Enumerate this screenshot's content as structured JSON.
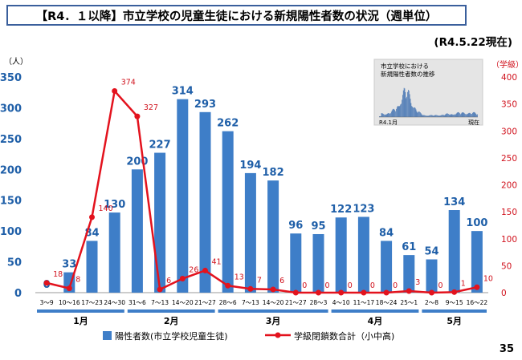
{
  "title": "【R4．１以降】市立学校の児童生徒における新規陽性者数の状況（週単位）",
  "date_note": "(R4.5.22現在)",
  "page_number": "35",
  "colors": {
    "bar": "#3e7ec8",
    "line": "#e3121d",
    "bar_label": "#1f5fa8",
    "line_label": "#d0111c",
    "month_bar": "#3e7ec8",
    "title_border": "#3a5f9c"
  },
  "chart_data": {
    "type": "bar",
    "categories": [
      "3～9",
      "10～16",
      "17～23",
      "24～30",
      "31～6",
      "7～13",
      "14～20",
      "21～27",
      "28～6",
      "7～13",
      "14～20",
      "21～27",
      "28～3",
      "4～10",
      "11～17",
      "18～24",
      "25～1",
      "2～8",
      "9～15",
      "16～22"
    ],
    "month_groups": [
      {
        "label": "1月",
        "count": 4
      },
      {
        "label": "2月",
        "count": 4
      },
      {
        "label": "3月",
        "count": 5
      },
      {
        "label": "4月",
        "count": 4
      },
      {
        "label": "5月",
        "count": 3
      }
    ],
    "series": [
      {
        "name": "陽性者数(市立学校児童生徒)",
        "type": "bar",
        "axis": "left",
        "values": [
          0,
          33,
          84,
          130,
          200,
          227,
          314,
          293,
          262,
          194,
          182,
          96,
          95,
          122,
          123,
          84,
          61,
          54,
          134,
          100
        ]
      },
      {
        "name": "学級閉鎖数合計（小中高)",
        "type": "line",
        "axis": "right",
        "values": [
          18,
          8,
          140,
          374,
          327,
          6,
          26,
          41,
          13,
          7,
          6,
          0,
          0,
          0,
          0,
          0,
          3,
          0,
          1,
          10
        ]
      }
    ],
    "y_left": {
      "unit": "（人）",
      "ylim": [
        0,
        350
      ],
      "ticks": [
        0,
        50,
        100,
        150,
        200,
        250,
        300,
        350
      ]
    },
    "y_right": {
      "unit": "（学級）",
      "ylim": [
        0,
        400
      ],
      "ticks": [
        0,
        50,
        100,
        150,
        200,
        250,
        300,
        350,
        400
      ]
    },
    "legend_position": "bottom",
    "grid": false,
    "inset": {
      "title_line1": "市立学校における",
      "title_line2": "新規陽性者数の推移",
      "x_start_label": "R4.1月",
      "x_end_label": "現在"
    }
  }
}
